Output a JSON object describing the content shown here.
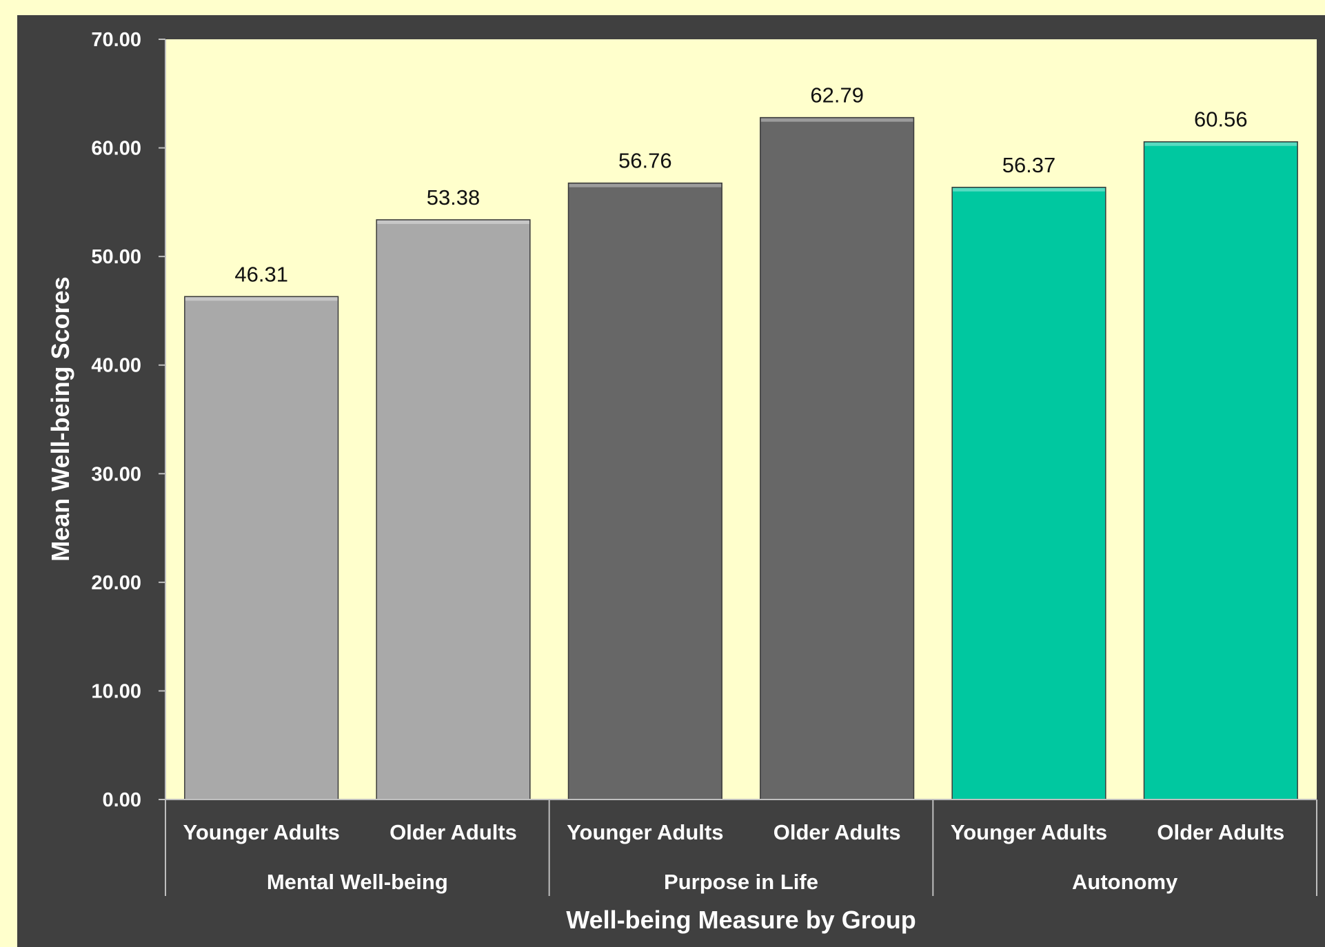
{
  "chart_data": {
    "type": "bar",
    "title": "",
    "xlabel": "Well-being Measure by Group",
    "ylabel": "Mean Well-being Scores",
    "ylim": [
      0,
      70
    ],
    "yticks": [
      "0.00",
      "10.00",
      "20.00",
      "30.00",
      "40.00",
      "50.00",
      "60.00",
      "70.00"
    ],
    "grid": false,
    "legend": "none",
    "groups": [
      {
        "name": "Mental Well-being",
        "color": "#a9a9a9",
        "bars": [
          {
            "category": "Younger Adults",
            "value": 46.31,
            "label": "46.31"
          },
          {
            "category": "Older Adults",
            "value": 53.38,
            "label": "53.38"
          }
        ]
      },
      {
        "name": "Purpose in Life",
        "color": "#676767",
        "bars": [
          {
            "category": "Younger Adults",
            "value": 56.76,
            "label": "56.76"
          },
          {
            "category": "Older Adults",
            "value": 62.79,
            "label": "62.79"
          }
        ]
      },
      {
        "name": "Autonomy",
        "color": "#00c8a0",
        "bars": [
          {
            "category": "Younger Adults",
            "value": 56.37,
            "label": "56.37"
          },
          {
            "category": "Older Adults",
            "value": 60.56,
            "label": "60.56"
          }
        ]
      }
    ]
  },
  "colors": {
    "page_background": "#ffffcc",
    "frame": "#404040",
    "plot_background": "#ffffcc",
    "text_light": "#ffffff",
    "text_dark": "#111111"
  }
}
